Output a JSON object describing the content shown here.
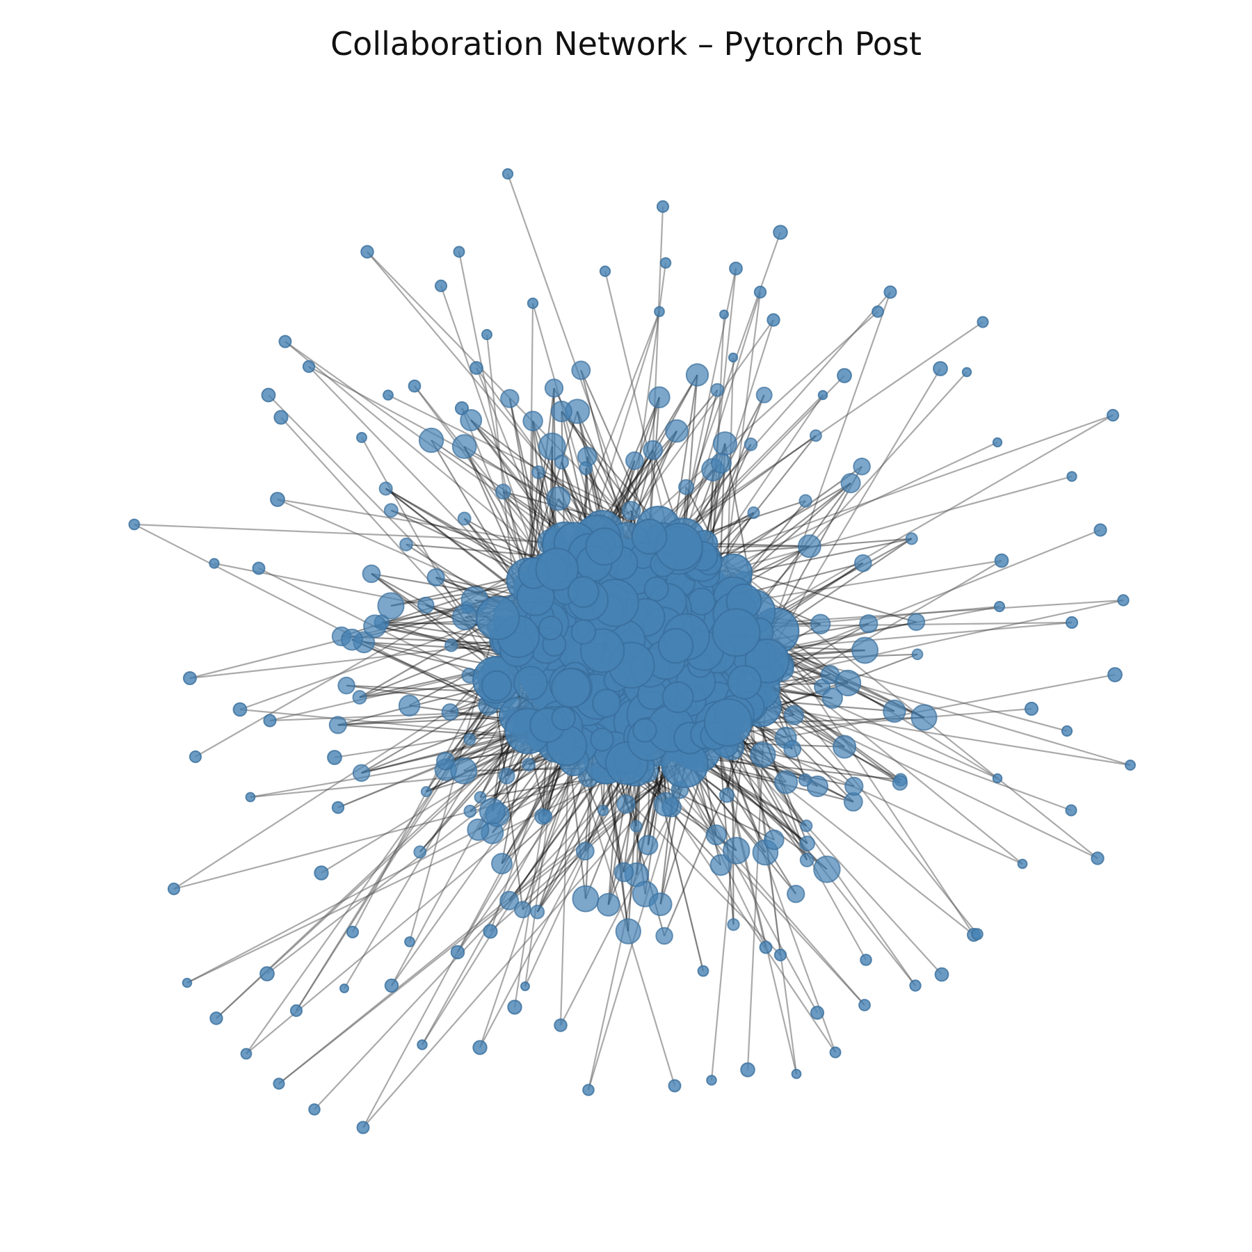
{
  "title": "Collaboration Network – Pytorch Post",
  "colors": {
    "node": "#4682b4",
    "node_stroke": "#3a6f9c",
    "edge": "#555555",
    "dense_edge": "#111111",
    "background": "#ffffff"
  }
}
